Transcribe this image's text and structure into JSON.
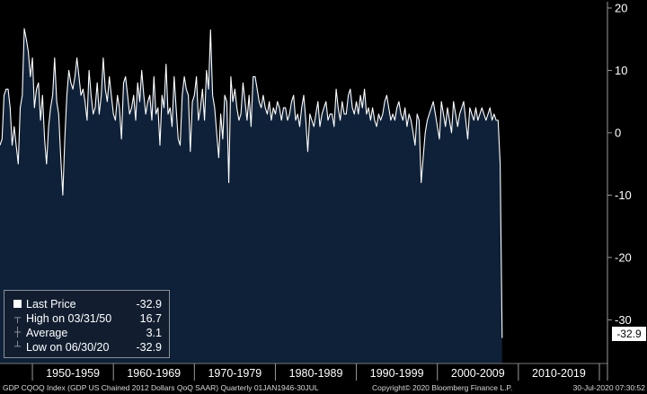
{
  "chart_data": {
    "type": "area",
    "title": "",
    "series_name": "GDP CQOQ Index",
    "y_axis": {
      "ticks": [
        20,
        10,
        0,
        -10,
        -20,
        -30
      ],
      "range": [
        -37,
        21
      ],
      "position": "right"
    },
    "x_axis": {
      "range": [
        1946.0,
        2021.0
      ],
      "period_labels": [
        "1950-1959",
        "1960-1969",
        "1970-1979",
        "1980-1989",
        "1990-1999",
        "2000-2009",
        "2010-2019"
      ],
      "separators": [
        1950,
        1960,
        1970,
        1980,
        1990,
        2000,
        2010,
        2020,
        2021
      ]
    },
    "series": [
      {
        "name": "GDP CQOQ Index",
        "start_year": 1946.0,
        "step": 0.25,
        "values": [
          -2,
          -1,
          6,
          7,
          7,
          4,
          -2,
          1,
          -2,
          -5,
          4,
          6,
          16.7,
          15,
          13,
          9,
          12,
          4,
          7,
          8,
          2,
          6,
          -1,
          -5,
          1,
          4,
          6,
          12,
          5,
          3,
          -4,
          -10,
          -1,
          6,
          10,
          8,
          7,
          9,
          12,
          9,
          6,
          7,
          5,
          2,
          10,
          6,
          3,
          4,
          8,
          3,
          6,
          12,
          7,
          5,
          9,
          6,
          3,
          2,
          6,
          4,
          -1,
          8,
          9,
          6,
          3,
          4,
          6,
          2,
          8,
          5,
          10,
          6,
          3,
          5,
          6,
          2,
          9,
          3,
          4,
          -2,
          6,
          4,
          11,
          3,
          4,
          1,
          9,
          4,
          -1,
          -2,
          6,
          9,
          7,
          6,
          -3,
          5,
          6,
          9,
          2,
          4,
          7,
          2,
          10,
          7,
          16.5,
          6,
          4,
          0,
          -4,
          3,
          -1,
          6,
          5,
          -8,
          9,
          5,
          7,
          4,
          2,
          3,
          8,
          5,
          2,
          6,
          1,
          9,
          9,
          7,
          5,
          4,
          6,
          4,
          3,
          5,
          2,
          4,
          3,
          5,
          4,
          2,
          4,
          4,
          2,
          3,
          5,
          6,
          2,
          3,
          1,
          4,
          6,
          2,
          -3,
          3,
          2,
          1,
          3,
          5,
          1,
          3,
          4,
          5,
          2,
          3,
          3,
          1,
          7,
          4,
          2,
          5,
          3,
          3,
          6,
          7,
          4,
          3,
          5,
          3,
          6,
          4,
          7,
          3,
          4,
          2,
          4,
          2,
          1,
          3,
          2,
          3,
          5,
          6,
          4,
          2,
          3,
          2,
          4,
          5,
          3,
          2,
          4,
          1,
          3,
          2,
          0,
          -2,
          3,
          2,
          -8,
          -4,
          0,
          2,
          3,
          4,
          5,
          3,
          1,
          -1,
          5,
          3,
          1,
          4,
          2,
          0,
          5,
          3,
          1,
          3,
          4,
          5,
          2,
          -1,
          4,
          3,
          2,
          4,
          2,
          3,
          4,
          3,
          2,
          3,
          4,
          2,
          3,
          2,
          2,
          -5,
          -32.9
        ]
      }
    ],
    "last_price_label": "-32.9"
  },
  "legend": {
    "last_price_label": "Last Price",
    "last_price_value": "-32.9",
    "high_label": "High on 03/31/50",
    "high_value": "16.7",
    "average_label": "Average",
    "average_value": "3.1",
    "low_label": "Low on 06/30/20",
    "low_value": "-32.9"
  },
  "footer": {
    "left": "GDP CQOQ Index (GDP US Chained 2012 Dollars QoQ SAAR)  Quarterly 01JAN1946-30JUL",
    "middle": "Copyright© 2020 Bloomberg Finance L.P.",
    "right": "30-Jul-2020 07:30:52"
  },
  "colors": {
    "area": "#0e2138",
    "line": "#ffffff",
    "background": "#000000"
  }
}
